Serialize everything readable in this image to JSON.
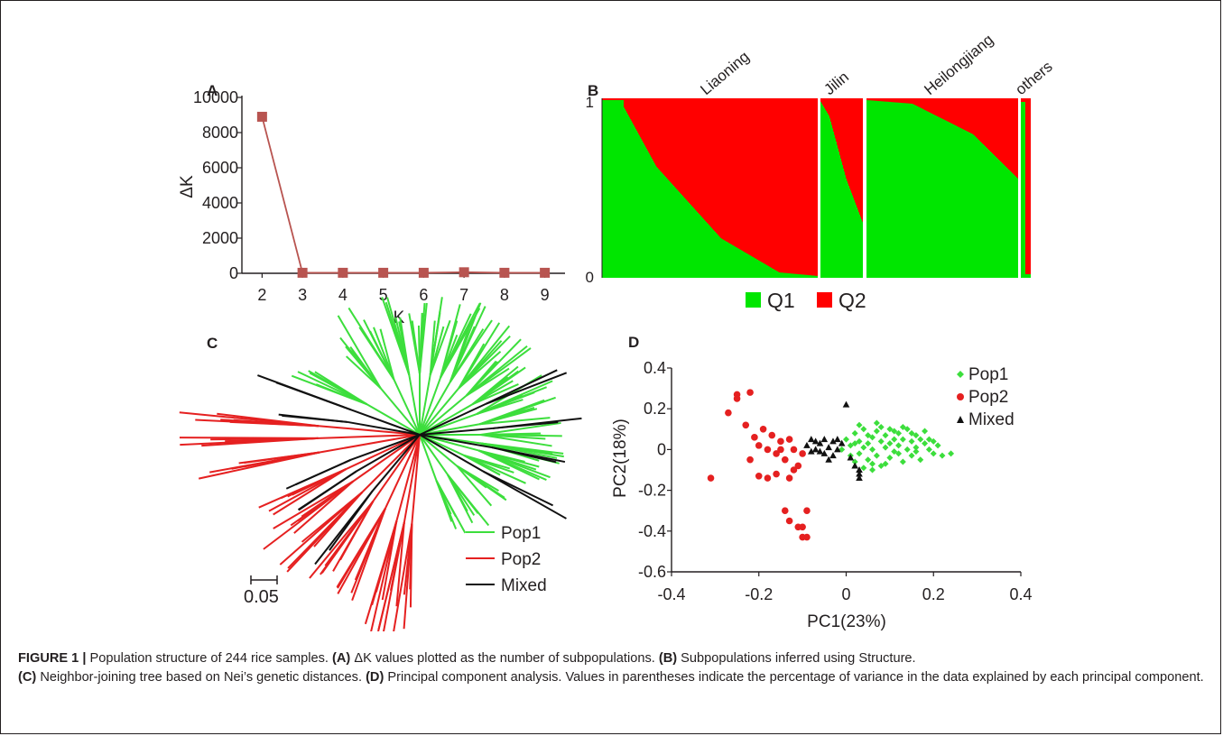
{
  "colors": {
    "q1": "#00e600",
    "q2": "#ff0000",
    "line_a": "#b85450",
    "marker_a": "#b85450",
    "pop1": "#3cde3c",
    "pop2": "#e52020",
    "mixed": "#111111"
  },
  "panels": {
    "a": {
      "label": "A"
    },
    "b": {
      "label": "B",
      "regions": [
        "Liaoning",
        "Jilin",
        "Heilongjiang",
        "others"
      ],
      "y_ticks": [
        "1",
        "0"
      ]
    },
    "c": {
      "label": "C",
      "scale_label": "0.05"
    },
    "d": {
      "label": "D"
    }
  },
  "legend_b": {
    "q1": "Q1",
    "q2": "Q2"
  },
  "legend_c": {
    "pop1": "Pop1",
    "pop2": "Pop2",
    "mixed": "Mixed"
  },
  "legend_d": {
    "pop1": "Pop1",
    "pop2": "Pop2",
    "mixed": "Mixed"
  },
  "caption": {
    "figure_label": "FIGURE 1 |",
    "intro": " Population structure of 244 rice samples. ",
    "a_tag": "(A)",
    "a_text": " ΔK values plotted as the number of subpopulations. ",
    "b_tag": "(B)",
    "b_text": " Subpopulations inferred using Structure.",
    "c_tag": "(C)",
    "c_text": " Neighbor-joining tree based on Nei’s genetic distances. ",
    "d_tag": "(D)",
    "d_text": " Principal component analysis. Values in parentheses indicate the percentage of variance in the data explained by each principal component."
  },
  "chart_data": [
    {
      "id": "A",
      "type": "line",
      "x": [
        2,
        3,
        4,
        5,
        6,
        7,
        8,
        9
      ],
      "y": [
        8900,
        30,
        30,
        30,
        30,
        60,
        30,
        30
      ],
      "xlabel": "K",
      "ylabel": "ΔK",
      "xlim": [
        1.5,
        9.5
      ],
      "ylim": [
        0,
        10000
      ],
      "x_ticks": [
        2,
        3,
        4,
        5,
        6,
        7,
        8,
        9
      ],
      "y_ticks": [
        0,
        2000,
        4000,
        6000,
        8000,
        10000
      ],
      "grid": false
    },
    {
      "id": "B",
      "type": "bar",
      "stacked": true,
      "series": [
        {
          "name": "Q1"
        },
        {
          "name": "Q2"
        }
      ],
      "groups": [
        {
          "name": "Liaoning",
          "q1_start": 0.99,
          "q1_end": 0.01
        },
        {
          "name": "Jilin",
          "q1_start": 0.98,
          "q1_end": 0.3
        },
        {
          "name": "Heilongjiang",
          "q1_start": 0.99,
          "q1_end": 0.55
        },
        {
          "name": "others",
          "q1_start": 0.98,
          "q1_end": 0.02
        }
      ],
      "ylim": [
        0,
        1
      ],
      "legend": "bottom"
    },
    {
      "id": "C",
      "type": "tree",
      "series": [
        {
          "name": "Pop1"
        },
        {
          "name": "Pop2"
        },
        {
          "name": "Mixed"
        }
      ],
      "scale_bar": 0.05,
      "legend": "bottom-right"
    },
    {
      "id": "D",
      "type": "scatter",
      "xlabel": "PC1(23%)",
      "ylabel": "PC2(18%)",
      "xlim": [
        -0.4,
        0.4
      ],
      "ylim": [
        -0.6,
        0.4
      ],
      "x_ticks": [
        -0.4,
        -0.2,
        0,
        0.2,
        0.4
      ],
      "y_ticks": [
        -0.6,
        -0.4,
        -0.2,
        0,
        0.2,
        0.4
      ],
      "legend": "top-right",
      "grid": false,
      "series": [
        {
          "name": "Pop1",
          "marker": "diamond",
          "points": [
            [
              0.0,
              0.05
            ],
            [
              0.01,
              0.02
            ],
            [
              0.02,
              0.08
            ],
            [
              0.03,
              0.04
            ],
            [
              0.03,
              -0.02
            ],
            [
              0.04,
              0.1
            ],
            [
              0.05,
              0.03
            ],
            [
              0.05,
              -0.05
            ],
            [
              0.06,
              0.06
            ],
            [
              0.06,
              0.0
            ],
            [
              0.07,
              0.09
            ],
            [
              0.07,
              -0.03
            ],
            [
              0.08,
              0.04
            ],
            [
              0.08,
              -0.08
            ],
            [
              0.09,
              0.07
            ],
            [
              0.09,
              0.01
            ],
            [
              0.1,
              0.1
            ],
            [
              0.1,
              -0.04
            ],
            [
              0.11,
              0.05
            ],
            [
              0.11,
              -0.01
            ],
            [
              0.12,
              0.08
            ],
            [
              0.12,
              0.02
            ],
            [
              0.13,
              -0.06
            ],
            [
              0.13,
              0.05
            ],
            [
              0.14,
              0.1
            ],
            [
              0.14,
              0.0
            ],
            [
              0.15,
              0.04
            ],
            [
              0.15,
              -0.03
            ],
            [
              0.16,
              0.07
            ],
            [
              0.16,
              0.01
            ],
            [
              0.17,
              0.05
            ],
            [
              0.17,
              -0.05
            ],
            [
              0.18,
              0.03
            ],
            [
              0.18,
              0.09
            ],
            [
              0.19,
              0.0
            ],
            [
              0.2,
              0.04
            ],
            [
              0.2,
              -0.02
            ],
            [
              0.21,
              0.02
            ],
            [
              0.22,
              -0.03
            ],
            [
              0.24,
              -0.02
            ],
            [
              0.02,
              -0.06
            ],
            [
              0.04,
              -0.09
            ],
            [
              0.06,
              -0.1
            ],
            [
              0.03,
              0.12
            ],
            [
              0.08,
              0.11
            ],
            [
              -0.01,
              0.0
            ],
            [
              0.01,
              -0.03
            ],
            [
              0.05,
              0.07
            ],
            [
              0.1,
              0.03
            ],
            [
              0.13,
              0.11
            ],
            [
              0.15,
              0.08
            ],
            [
              0.07,
              0.13
            ],
            [
              0.19,
              0.05
            ],
            [
              0.12,
              -0.02
            ],
            [
              0.09,
              -0.07
            ],
            [
              0.04,
              0.01
            ],
            [
              0.02,
              0.03
            ],
            [
              0.11,
              0.09
            ],
            [
              0.16,
              -0.01
            ],
            [
              0.06,
              -0.07
            ]
          ]
        },
        {
          "name": "Pop2",
          "marker": "circle",
          "points": [
            [
              -0.31,
              -0.14
            ],
            [
              -0.25,
              0.27
            ],
            [
              -0.25,
              0.25
            ],
            [
              -0.22,
              0.28
            ],
            [
              -0.27,
              0.18
            ],
            [
              -0.23,
              0.12
            ],
            [
              -0.21,
              0.06
            ],
            [
              -0.19,
              0.1
            ],
            [
              -0.2,
              0.02
            ],
            [
              -0.18,
              0.0
            ],
            [
              -0.17,
              0.07
            ],
            [
              -0.16,
              -0.02
            ],
            [
              -0.15,
              0.04
            ],
            [
              -0.14,
              -0.05
            ],
            [
              -0.13,
              0.05
            ],
            [
              -0.12,
              0.0
            ],
            [
              -0.11,
              -0.08
            ],
            [
              -0.12,
              -0.1
            ],
            [
              -0.13,
              -0.14
            ],
            [
              -0.2,
              -0.13
            ],
            [
              -0.18,
              -0.14
            ],
            [
              -0.16,
              -0.12
            ],
            [
              -0.22,
              -0.05
            ],
            [
              -0.14,
              -0.3
            ],
            [
              -0.13,
              -0.35
            ],
            [
              -0.11,
              -0.38
            ],
            [
              -0.1,
              -0.43
            ],
            [
              -0.09,
              -0.43
            ],
            [
              -0.1,
              -0.38
            ],
            [
              -0.09,
              -0.3
            ],
            [
              -0.15,
              0.0
            ],
            [
              -0.1,
              -0.02
            ]
          ]
        },
        {
          "name": "Mixed",
          "marker": "triangle",
          "points": [
            [
              -0.09,
              0.02
            ],
            [
              -0.08,
              0.05
            ],
            [
              -0.07,
              0.0
            ],
            [
              -0.06,
              0.03
            ],
            [
              -0.05,
              -0.02
            ],
            [
              -0.05,
              0.05
            ],
            [
              -0.04,
              0.01
            ],
            [
              -0.03,
              0.04
            ],
            [
              -0.03,
              -0.03
            ],
            [
              -0.02,
              0.0
            ],
            [
              -0.01,
              0.03
            ],
            [
              -0.06,
              -0.01
            ],
            [
              -0.08,
              -0.01
            ],
            [
              0.0,
              0.22
            ],
            [
              0.02,
              -0.08
            ],
            [
              0.03,
              -0.1
            ],
            [
              0.03,
              -0.14
            ],
            [
              0.03,
              -0.12
            ],
            [
              -0.04,
              -0.05
            ],
            [
              -0.07,
              0.04
            ],
            [
              0.01,
              -0.04
            ],
            [
              -0.02,
              0.05
            ]
          ]
        }
      ]
    }
  ]
}
